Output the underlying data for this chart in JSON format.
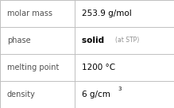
{
  "rows": [
    {
      "label": "molar mass",
      "value": "253.9 g/mol",
      "type": "plain"
    },
    {
      "label": "phase",
      "value": "solid",
      "value_suffix": "(at STP)",
      "type": "suffix"
    },
    {
      "label": "melting point",
      "value": "1200 °C",
      "type": "plain"
    },
    {
      "label": "density",
      "value": "6 g/cm",
      "superscript": "3",
      "type": "super"
    }
  ],
  "background_color": "#ffffff",
  "border_color": "#c0c0c0",
  "label_color": "#505050",
  "value_color": "#000000",
  "suffix_color": "#909090",
  "label_fontsize": 7.0,
  "value_fontsize": 7.5,
  "suffix_fontsize": 5.5,
  "super_fontsize": 5.0,
  "col_split": 0.43
}
